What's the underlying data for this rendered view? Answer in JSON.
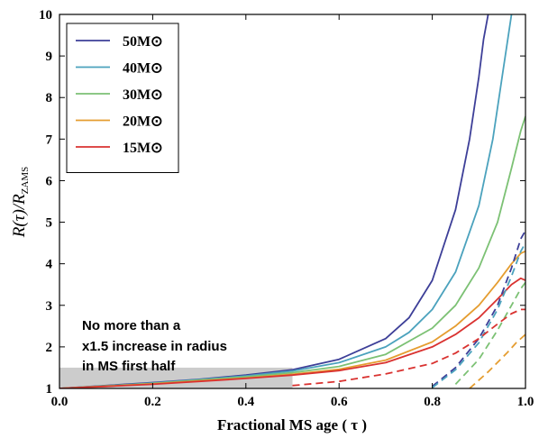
{
  "chart_data": {
    "type": "line",
    "xlabel": "Fractional MS age ( τ )",
    "ylabel": "R(τ)/R",
    "ylabel_sub": "ZAMS",
    "xlim": [
      0.0,
      1.0
    ],
    "ylim": [
      1,
      10
    ],
    "xticks": [
      "0.0",
      "0.2",
      "0.4",
      "0.6",
      "0.8",
      "1.0"
    ],
    "yticks": [
      "1",
      "2",
      "3",
      "4",
      "5",
      "6",
      "7",
      "8",
      "9",
      "10"
    ],
    "grid": false,
    "legend_position": "top-left",
    "shaded_region": {
      "x": [
        0.0,
        0.5
      ],
      "y": [
        1.0,
        1.5
      ],
      "color": "#cccccc"
    },
    "annotation": [
      "No more than a",
      "x1.5 increase in radius",
      "in MS first half"
    ],
    "series": [
      {
        "name": "50M⊙",
        "color": "#3d3f98",
        "x": [
          0.0,
          0.1,
          0.2,
          0.3,
          0.4,
          0.5,
          0.6,
          0.7,
          0.75,
          0.8,
          0.85,
          0.88,
          0.9,
          0.91,
          0.92
        ],
        "values": [
          1.0,
          1.07,
          1.14,
          1.22,
          1.32,
          1.45,
          1.7,
          2.2,
          2.7,
          3.6,
          5.3,
          7.0,
          8.5,
          9.4,
          10.0
        ]
      },
      {
        "name": "40M⊙",
        "color": "#4ba2bd",
        "x": [
          0.0,
          0.1,
          0.2,
          0.3,
          0.4,
          0.5,
          0.6,
          0.7,
          0.75,
          0.8,
          0.85,
          0.9,
          0.93,
          0.95,
          0.97
        ],
        "values": [
          1.0,
          1.06,
          1.13,
          1.21,
          1.3,
          1.42,
          1.62,
          2.0,
          2.35,
          2.9,
          3.8,
          5.4,
          7.0,
          8.5,
          10.0
        ]
      },
      {
        "name": "30M⊙",
        "color": "#7cc174",
        "x": [
          0.0,
          0.1,
          0.2,
          0.3,
          0.4,
          0.5,
          0.6,
          0.7,
          0.8,
          0.85,
          0.9,
          0.94,
          0.97,
          0.99,
          1.0
        ],
        "values": [
          1.0,
          1.06,
          1.12,
          1.2,
          1.28,
          1.38,
          1.53,
          1.82,
          2.45,
          3.0,
          3.9,
          5.0,
          6.3,
          7.2,
          7.55
        ]
      },
      {
        "name": "20M⊙",
        "color": "#e59d30",
        "x": [
          0.0,
          0.1,
          0.2,
          0.3,
          0.4,
          0.5,
          0.6,
          0.7,
          0.8,
          0.85,
          0.9,
          0.94,
          0.97,
          0.99,
          1.0
        ],
        "values": [
          1.0,
          1.05,
          1.11,
          1.18,
          1.25,
          1.34,
          1.46,
          1.68,
          2.12,
          2.5,
          3.0,
          3.55,
          4.0,
          4.25,
          4.3
        ]
      },
      {
        "name": "15M⊙",
        "color": "#d93230",
        "x": [
          0.0,
          0.1,
          0.2,
          0.3,
          0.4,
          0.5,
          0.6,
          0.7,
          0.8,
          0.85,
          0.9,
          0.94,
          0.97,
          0.99,
          1.0
        ],
        "values": [
          1.0,
          1.05,
          1.1,
          1.17,
          1.24,
          1.32,
          1.43,
          1.62,
          2.0,
          2.3,
          2.7,
          3.15,
          3.5,
          3.65,
          3.6
        ]
      },
      {
        "name": "",
        "color": "#3d3f98",
        "dashed": true,
        "x": [
          0.8,
          0.85,
          0.9,
          0.94,
          0.97,
          0.99,
          1.0
        ],
        "values": [
          1.05,
          1.5,
          2.2,
          3.0,
          3.9,
          4.6,
          4.8
        ]
      },
      {
        "name": "",
        "color": "#4ba2bd",
        "dashed": true,
        "x": [
          0.8,
          0.85,
          0.9,
          0.94,
          0.97,
          0.99,
          1.0
        ],
        "values": [
          1.02,
          1.45,
          2.1,
          2.9,
          3.7,
          4.3,
          4.5
        ]
      },
      {
        "name": "",
        "color": "#7cc174",
        "dashed": true,
        "x": [
          0.85,
          0.9,
          0.94,
          0.97,
          0.99,
          1.0
        ],
        "values": [
          1.1,
          1.7,
          2.4,
          3.0,
          3.4,
          3.55
        ]
      },
      {
        "name": "",
        "color": "#e59d30",
        "dashed": true,
        "x": [
          0.88,
          0.92,
          0.96,
          0.98,
          1.0
        ],
        "values": [
          1.0,
          1.4,
          1.85,
          2.1,
          2.3
        ]
      },
      {
        "name": "",
        "color": "#d93230",
        "dashed": true,
        "x": [
          0.5,
          0.6,
          0.7,
          0.8,
          0.85,
          0.9,
          0.94,
          0.97,
          0.99,
          1.0
        ],
        "values": [
          1.07,
          1.17,
          1.35,
          1.6,
          1.85,
          2.2,
          2.55,
          2.8,
          2.9,
          2.9
        ]
      }
    ]
  }
}
